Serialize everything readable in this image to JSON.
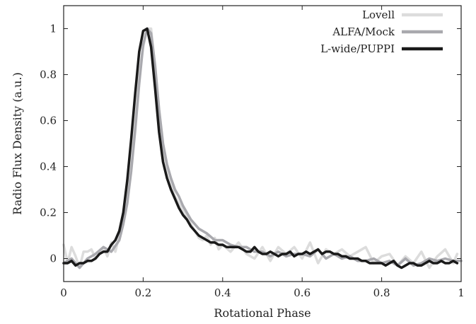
{
  "chart_data": {
    "type": "line",
    "xlabel": "Rotational Phase",
    "ylabel": "Radio Flux Density (a.u.)",
    "xlim": [
      0,
      1
    ],
    "ylim": [
      -0.1,
      1.1
    ],
    "xticks": [
      0,
      0.2,
      0.4,
      0.6,
      0.8,
      1
    ],
    "xtick_labels": [
      "0",
      "0.2",
      "0.4",
      "0.6",
      "0.8",
      "1"
    ],
    "yticks": [
      0,
      0.2,
      0.4,
      0.6,
      0.8,
      1
    ],
    "ytick_labels": [
      "0",
      "0.2",
      "0.4",
      "0.6",
      "0.8",
      "1"
    ],
    "grid": false,
    "legend_position": "top-right",
    "series": [
      {
        "name": "Lovell",
        "color": "#dcdcdc",
        "x": [
          0,
          0.01,
          0.02,
          0.03,
          0.04,
          0.05,
          0.06,
          0.07,
          0.08,
          0.09,
          0.1,
          0.11,
          0.12,
          0.13,
          0.14,
          0.15,
          0.16,
          0.17,
          0.18,
          0.19,
          0.2,
          0.21,
          0.22,
          0.23,
          0.24,
          0.25,
          0.26,
          0.27,
          0.28,
          0.29,
          0.3,
          0.31,
          0.32,
          0.33,
          0.34,
          0.35,
          0.36,
          0.37,
          0.38,
          0.39,
          0.4,
          0.42,
          0.44,
          0.46,
          0.48,
          0.5,
          0.52,
          0.54,
          0.56,
          0.58,
          0.6,
          0.62,
          0.64,
          0.66,
          0.68,
          0.7,
          0.72,
          0.74,
          0.76,
          0.78,
          0.8,
          0.82,
          0.84,
          0.86,
          0.88,
          0.9,
          0.92,
          0.94,
          0.96,
          0.98,
          0.99
        ],
        "y": [
          0.06,
          -0.02,
          0.05,
          0.01,
          -0.04,
          0.03,
          0.03,
          0.04,
          0.0,
          0.02,
          0.05,
          0.01,
          0.07,
          0.03,
          0.1,
          0.16,
          0.26,
          0.42,
          0.6,
          0.8,
          0.92,
          1.0,
          1.0,
          0.83,
          0.6,
          0.46,
          0.37,
          0.32,
          0.27,
          0.24,
          0.21,
          0.18,
          0.15,
          0.12,
          0.09,
          0.08,
          0.1,
          0.06,
          0.09,
          0.04,
          0.06,
          0.03,
          0.07,
          0.02,
          0.0,
          0.05,
          -0.01,
          0.05,
          0.02,
          0.05,
          0.0,
          0.07,
          -0.02,
          0.04,
          0.02,
          0.04,
          0.01,
          0.03,
          0.05,
          -0.02,
          0.01,
          0.02,
          -0.03,
          0.01,
          -0.02,
          0.03,
          -0.04,
          0.01,
          0.04,
          -0.02,
          0.02
        ]
      },
      {
        "name": "ALFA/Mock",
        "color": "#a9a9ae",
        "x": [
          0,
          0.02,
          0.04,
          0.06,
          0.08,
          0.1,
          0.12,
          0.14,
          0.15,
          0.16,
          0.17,
          0.18,
          0.19,
          0.2,
          0.21,
          0.22,
          0.23,
          0.24,
          0.25,
          0.26,
          0.27,
          0.28,
          0.29,
          0.3,
          0.32,
          0.34,
          0.36,
          0.38,
          0.4,
          0.42,
          0.44,
          0.46,
          0.48,
          0.5,
          0.52,
          0.54,
          0.56,
          0.58,
          0.6,
          0.62,
          0.64,
          0.66,
          0.68,
          0.7,
          0.72,
          0.74,
          0.76,
          0.78,
          0.8,
          0.82,
          0.84,
          0.86,
          0.88,
          0.9,
          0.92,
          0.94,
          0.96,
          0.98,
          1.0
        ],
        "y": [
          -0.02,
          0.0,
          -0.04,
          0.0,
          0.02,
          0.05,
          0.03,
          0.08,
          0.15,
          0.24,
          0.38,
          0.56,
          0.76,
          0.93,
          1.0,
          0.98,
          0.84,
          0.65,
          0.5,
          0.41,
          0.35,
          0.3,
          0.27,
          0.23,
          0.17,
          0.13,
          0.11,
          0.08,
          0.08,
          0.06,
          0.05,
          0.05,
          0.03,
          0.03,
          0.01,
          0.03,
          0.01,
          0.02,
          0.02,
          0.01,
          0.04,
          0.0,
          0.02,
          0.0,
          0.01,
          -0.01,
          -0.01,
          0.0,
          -0.02,
          -0.01,
          -0.03,
          0.0,
          -0.03,
          -0.02,
          0.0,
          -0.01,
          0.0,
          -0.01,
          -0.01
        ]
      },
      {
        "name": "L-wide/PUPPI",
        "color": "#1a1a1a",
        "x": [
          0,
          0.01,
          0.02,
          0.03,
          0.04,
          0.05,
          0.06,
          0.07,
          0.08,
          0.09,
          0.1,
          0.11,
          0.12,
          0.13,
          0.14,
          0.15,
          0.16,
          0.17,
          0.18,
          0.19,
          0.2,
          0.21,
          0.22,
          0.23,
          0.24,
          0.25,
          0.26,
          0.27,
          0.28,
          0.29,
          0.3,
          0.31,
          0.32,
          0.33,
          0.34,
          0.35,
          0.36,
          0.37,
          0.38,
          0.39,
          0.4,
          0.41,
          0.42,
          0.43,
          0.44,
          0.45,
          0.46,
          0.47,
          0.48,
          0.49,
          0.5,
          0.51,
          0.52,
          0.53,
          0.54,
          0.55,
          0.56,
          0.57,
          0.58,
          0.59,
          0.6,
          0.61,
          0.62,
          0.63,
          0.64,
          0.65,
          0.66,
          0.67,
          0.68,
          0.69,
          0.7,
          0.71,
          0.72,
          0.73,
          0.74,
          0.75,
          0.76,
          0.77,
          0.78,
          0.79,
          0.8,
          0.81,
          0.82,
          0.83,
          0.84,
          0.85,
          0.86,
          0.87,
          0.88,
          0.89,
          0.9,
          0.91,
          0.92,
          0.93,
          0.94,
          0.95,
          0.96,
          0.97,
          0.98,
          0.99
        ],
        "y": [
          -0.02,
          -0.02,
          -0.01,
          -0.03,
          -0.02,
          -0.02,
          -0.01,
          -0.01,
          0.0,
          0.02,
          0.03,
          0.03,
          0.06,
          0.08,
          0.12,
          0.2,
          0.34,
          0.52,
          0.72,
          0.9,
          0.99,
          1.0,
          0.92,
          0.74,
          0.55,
          0.42,
          0.35,
          0.3,
          0.26,
          0.22,
          0.19,
          0.17,
          0.14,
          0.12,
          0.1,
          0.09,
          0.08,
          0.07,
          0.07,
          0.06,
          0.06,
          0.05,
          0.05,
          0.05,
          0.05,
          0.04,
          0.03,
          0.03,
          0.05,
          0.03,
          0.02,
          0.02,
          0.03,
          0.02,
          0.01,
          0.02,
          0.02,
          0.03,
          0.01,
          0.02,
          0.02,
          0.03,
          0.02,
          0.03,
          0.04,
          0.02,
          0.03,
          0.03,
          0.02,
          0.02,
          0.01,
          0.01,
          0.0,
          0.0,
          0.0,
          -0.01,
          -0.01,
          -0.02,
          -0.02,
          -0.02,
          -0.02,
          -0.03,
          -0.02,
          -0.01,
          -0.03,
          -0.04,
          -0.03,
          -0.02,
          -0.02,
          -0.03,
          -0.03,
          -0.02,
          -0.01,
          -0.02,
          -0.02,
          -0.01,
          -0.02,
          -0.02,
          -0.01,
          -0.02
        ]
      }
    ]
  }
}
